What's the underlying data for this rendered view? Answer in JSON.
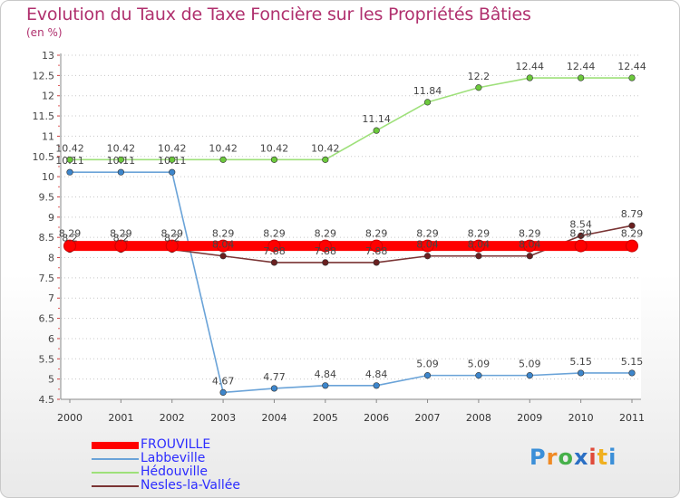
{
  "title": "Evolution du Taux de Taxe Foncière sur les Propriétés Bâties",
  "subtitle": "(en %)",
  "brand": {
    "text": "Proxiti",
    "letter_colors": [
      "#3b8fd8",
      "#f08a24",
      "#46b04a",
      "#2a6fc4",
      "#e04a3a",
      "#f0b020",
      "#3b8fd8"
    ]
  },
  "chart_data": {
    "type": "line",
    "title": "Evolution du Taux de Taxe Foncière sur les Propriétés Bâties",
    "ylabel": "(en %)",
    "xlabel": "",
    "ylim": [
      4.5,
      13
    ],
    "ytick_step": 0.5,
    "grid": "horizontal dotted",
    "legend": "bottom-left",
    "categories": [
      "2000",
      "2001",
      "2002",
      "2003",
      "2004",
      "2005",
      "2006",
      "2007",
      "2008",
      "2009",
      "2010",
      "2011"
    ],
    "series": [
      {
        "name": "FROUVILLE",
        "color": "#ff0000",
        "marker": "#ff0000",
        "emphasis": true,
        "values": [
          8.29,
          8.29,
          8.29,
          8.29,
          8.29,
          8.29,
          8.29,
          8.29,
          8.29,
          8.29,
          8.29,
          8.29
        ]
      },
      {
        "name": "Labbeville",
        "color": "#6aa3d8",
        "marker": "#3d86cc",
        "emphasis": false,
        "values": [
          10.11,
          10.11,
          10.11,
          4.67,
          4.77,
          4.84,
          4.84,
          5.09,
          5.09,
          5.09,
          5.15,
          5.15
        ]
      },
      {
        "name": "Hédouville",
        "color": "#9ee07a",
        "marker": "#6cc93c",
        "emphasis": false,
        "values": [
          10.42,
          10.42,
          10.42,
          10.42,
          10.42,
          10.42,
          11.14,
          11.84,
          12.2,
          12.44,
          12.44,
          12.44
        ]
      },
      {
        "name": "Nesles-la-Vallée",
        "color": "#7a3434",
        "marker": "#6a2020",
        "emphasis": false,
        "values": [
          8.2,
          8.2,
          8.2,
          8.04,
          7.88,
          7.88,
          7.88,
          8.04,
          8.04,
          8.04,
          8.54,
          8.79
        ]
      }
    ]
  }
}
